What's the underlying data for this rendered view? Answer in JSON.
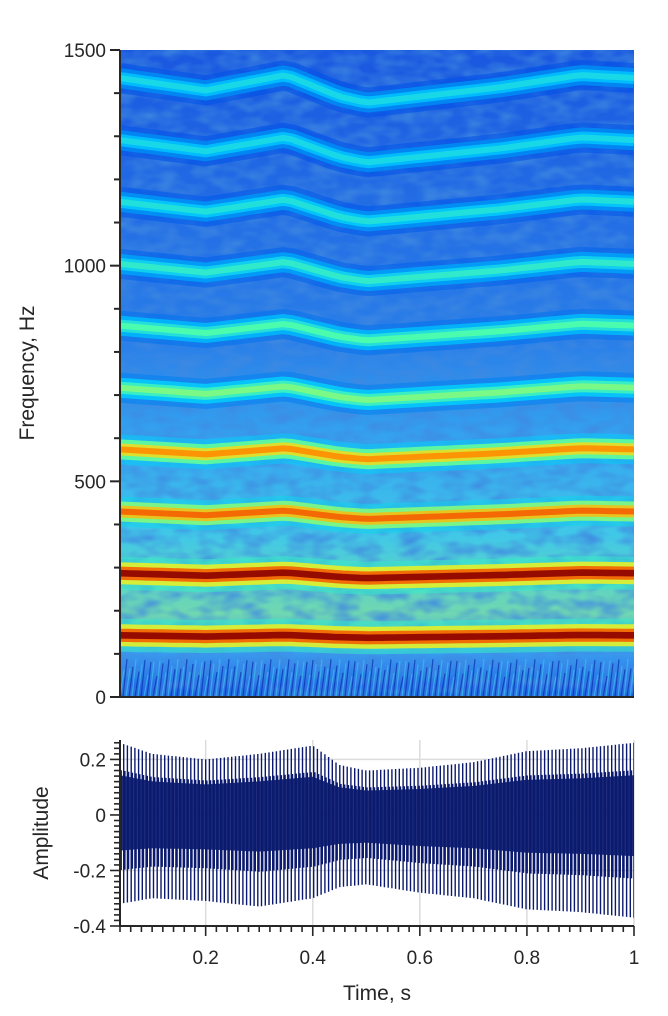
{
  "chart_data": [
    {
      "type": "heatmap",
      "title": "",
      "xlabel": "",
      "ylabel": "Frequency, Hz",
      "xlim": [
        0.04,
        1.0
      ],
      "ylim": [
        0,
        1500
      ],
      "yticks": [
        0,
        500,
        1000,
        1500
      ],
      "ytick_labels": [
        "0",
        "500",
        "1000",
        "1500"
      ],
      "grid": false,
      "colormap": "jet",
      "harmonics_hz": [
        143,
        287,
        430,
        574,
        717,
        861,
        1004,
        1148,
        1291,
        1435
      ],
      "harmonic_intensity": [
        1.0,
        1.0,
        0.85,
        0.8,
        0.55,
        0.5,
        0.45,
        0.42,
        0.4,
        0.4
      ],
      "pitch_contour": {
        "time_s": [
          0.04,
          0.2,
          0.35,
          0.45,
          0.5,
          0.6,
          0.75,
          0.9,
          1.0
        ],
        "relative_shift": [
          0.0,
          -0.02,
          0.005,
          -0.03,
          -0.04,
          -0.03,
          -0.015,
          0.005,
          0.0
        ]
      }
    },
    {
      "type": "line",
      "title": "",
      "xlabel": "Time, s",
      "ylabel": "Amplitude",
      "xlim": [
        0.04,
        1.0
      ],
      "ylim": [
        -0.4,
        0.27
      ],
      "xticks": [
        0.2,
        0.4,
        0.6,
        0.8,
        1.0
      ],
      "xtick_labels": [
        "0.2",
        "0.4",
        "0.6",
        "0.8",
        "1"
      ],
      "yticks": [
        -0.4,
        -0.2,
        0,
        0.2
      ],
      "ytick_labels": [
        "-0.4",
        "-0.2",
        "0",
        "0.2"
      ],
      "grid": true,
      "line_color": "#0b1a6e",
      "envelope": {
        "time_s": [
          0.04,
          0.1,
          0.2,
          0.3,
          0.4,
          0.45,
          0.5,
          0.6,
          0.7,
          0.8,
          0.9,
          1.0
        ],
        "upper": [
          0.26,
          0.22,
          0.2,
          0.22,
          0.25,
          0.18,
          0.16,
          0.17,
          0.19,
          0.23,
          0.24,
          0.26
        ],
        "lower": [
          -0.32,
          -0.3,
          -0.31,
          -0.33,
          -0.3,
          -0.26,
          -0.25,
          -0.28,
          -0.3,
          -0.34,
          -0.35,
          -0.37
        ]
      }
    }
  ],
  "colors": {
    "axis": "#262626",
    "grid": "#dcdcdc",
    "waveform": "#0b1a6e"
  }
}
